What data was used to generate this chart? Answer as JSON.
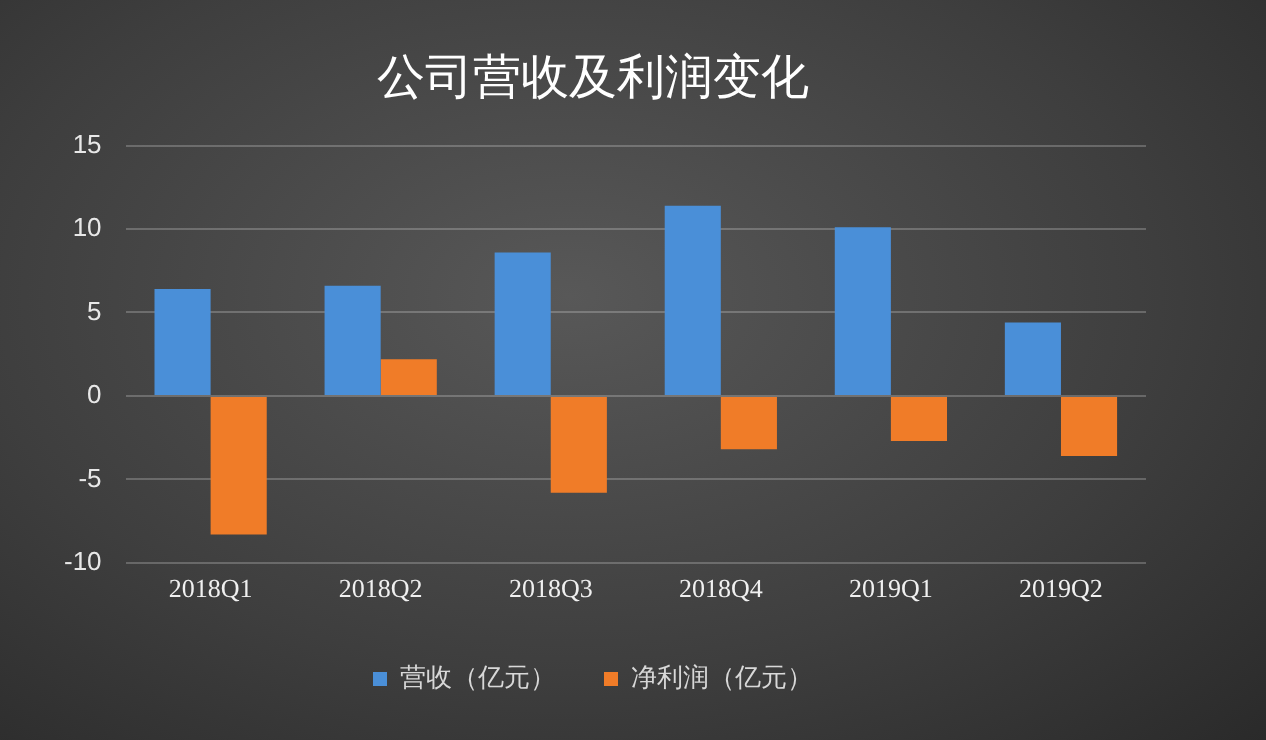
{
  "chart_data": {
    "type": "bar",
    "title": "公司营收及利润变化",
    "categories": [
      "2018Q1",
      "2018Q2",
      "2018Q3",
      "2018Q4",
      "2019Q1",
      "2019Q2"
    ],
    "series": [
      {
        "name": "营收（亿元）",
        "color": "#4a8fd8",
        "values": [
          6.4,
          6.6,
          8.6,
          11.4,
          10.1,
          4.4
        ]
      },
      {
        "name": "净利润（亿元）",
        "color": "#f07c28",
        "values": [
          -8.3,
          2.2,
          -5.8,
          -3.2,
          -2.7,
          -3.6
        ]
      }
    ],
    "ylim": [
      -10,
      15
    ],
    "yticks": [
      -10,
      -5,
      0,
      5,
      10,
      15
    ],
    "grid": "y",
    "legend": "bottom"
  }
}
